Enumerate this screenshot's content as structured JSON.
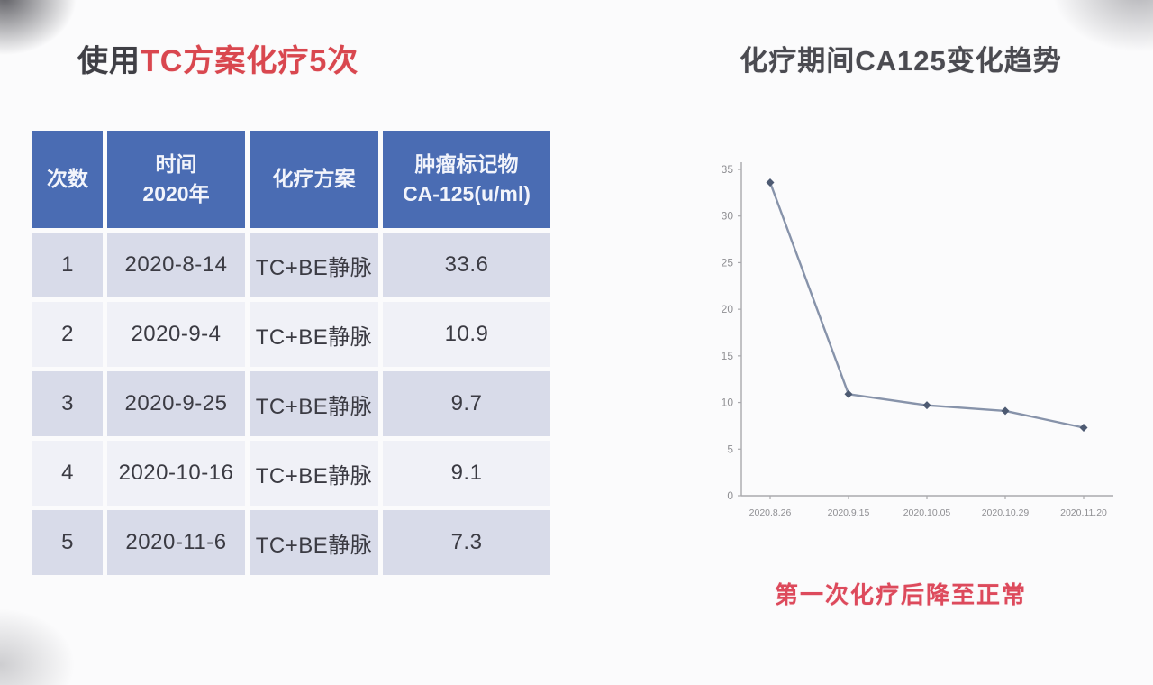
{
  "left": {
    "title": {
      "prefix": "使用",
      "highlight": "TC方案化疗5次"
    },
    "table": {
      "headers": [
        {
          "lines": [
            "次数"
          ]
        },
        {
          "lines": [
            "时间",
            "2020年"
          ]
        },
        {
          "lines": [
            "化疗方案"
          ]
        },
        {
          "lines": [
            "肿瘤标记物",
            "CA-125(u/ml)"
          ]
        }
      ],
      "rows": [
        [
          "1",
          "2020-8-14",
          "TC+BE静脉",
          "33.6"
        ],
        [
          "2",
          "2020-9-4",
          "TC+BE静脉",
          "10.9"
        ],
        [
          "3",
          "2020-9-25",
          "TC+BE静脉",
          "9.7"
        ],
        [
          "4",
          "2020-10-16",
          "TC+BE静脉",
          "9.1"
        ],
        [
          "5",
          "2020-11-6",
          "TC+BE静脉",
          "7.3"
        ]
      ],
      "header_bg": "#4a6cb3",
      "row_bg_alt": "#d8dbe9",
      "row_bg_light": "#f0f1f7"
    }
  },
  "right": {
    "title": "化疗期间CA125变化趋势",
    "caption": "第一次化疗后降至正常",
    "caption_color": "#dd4a5c"
  },
  "chart_data": {
    "type": "line",
    "title": "化疗期间CA125变化趋势",
    "x": [
      "2020.8.26",
      "2020.9.15",
      "2020.10.05",
      "2020.10.29",
      "2020.11.20"
    ],
    "series": [
      {
        "name": "CA125 (u/ml)",
        "values": [
          33.6,
          10.9,
          9.7,
          9.1,
          7.3
        ]
      }
    ],
    "xlabel": "",
    "ylabel": "",
    "ylim": [
      0,
      35
    ],
    "ytick_step": 5,
    "grid": false,
    "legend": "none",
    "line_color": "#8793aa",
    "marker_color": "#4d5a72",
    "axis_color": "#a9a9ad",
    "tick_text_color": "#8f8f93"
  }
}
